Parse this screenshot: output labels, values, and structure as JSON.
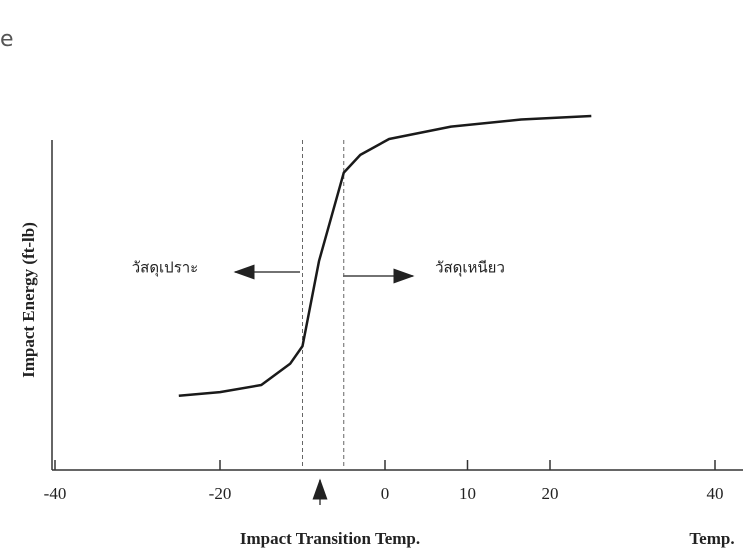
{
  "fragment": "e",
  "chart_data": {
    "type": "line",
    "y_label": "Impact Energy (ft-lb)",
    "x_label": "Impact Transition Temp.",
    "x_axis_unit": "Temp.",
    "brittle_label": "วัสดุเปราะ",
    "ductile_label": "วัสดุเหนียว",
    "x": [
      -25,
      -20,
      -15,
      -11.5,
      -10,
      -8,
      -5,
      -3,
      0.5,
      8,
      16.5,
      25
    ],
    "values": [
      21,
      22,
      24,
      30,
      35,
      59,
      84,
      89,
      93.5,
      97,
      99,
      100
    ],
    "color": "#1a1a1a",
    "transition_lines": [
      -10,
      -5
    ],
    "xlim": [
      -40,
      40
    ],
    "ylim": [
      0,
      100
    ],
    "xticks": [
      -40,
      -20,
      0,
      10,
      20,
      40
    ]
  }
}
